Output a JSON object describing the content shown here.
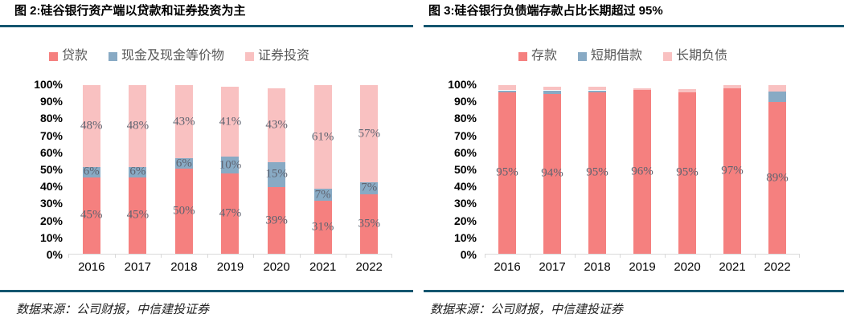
{
  "panels": [
    {
      "title": "图 2:硅谷银行资产端以贷款和证券投资为主",
      "source": "数据来源：公司财报，中信建投证券"
    },
    {
      "title": "图 3:硅谷银行负债端存款占比长期超过 95%",
      "source": "数据来源：公司财报，中信建投证券"
    }
  ],
  "colors": {
    "accent_rule": "#14566f",
    "axis_line": "#d9d9d9",
    "value_label": "#5f6370",
    "legend_text": "#595959",
    "series_red": "#f5807f",
    "series_blue": "#88aac4",
    "series_pink": "#f9c1c1"
  },
  "chart_data": [
    {
      "type": "bar",
      "stacked": true,
      "title": "图 2:硅谷银行资产端以贷款和证券投资为主",
      "categories": [
        "2016",
        "2017",
        "2018",
        "2019",
        "2020",
        "2021",
        "2022"
      ],
      "series": [
        {
          "key": "loans",
          "name": "贷款",
          "color": "#f5807f",
          "values": [
            45,
            45,
            50,
            47,
            39,
            31,
            35
          ],
          "labels": [
            "45%",
            "45%",
            "50%",
            "47%",
            "39%",
            "31%",
            "35%"
          ],
          "show_labels": true
        },
        {
          "key": "cash-and-equivalents",
          "name": "现金及现金等价物",
          "color": "#88aac4",
          "values": [
            6,
            6,
            6,
            10,
            15,
            7,
            7
          ],
          "labels": [
            "6%",
            "6%",
            "6%",
            "10%",
            "15%",
            "7%",
            "7%"
          ],
          "show_labels": true
        },
        {
          "key": "securities-investment",
          "name": "证券投资",
          "color": "#f9c1c1",
          "values": [
            48,
            48,
            43,
            41,
            43,
            61,
            57
          ],
          "labels": [
            "48%",
            "48%",
            "43%",
            "41%",
            "43%",
            "61%",
            "57%"
          ],
          "show_labels": true
        }
      ],
      "ylim": [
        0,
        100
      ],
      "ytick_step": 10,
      "ytick_labels": [
        "0%",
        "10%",
        "20%",
        "30%",
        "40%",
        "50%",
        "60%",
        "70%",
        "80%",
        "90%",
        "100%"
      ],
      "legend_position": "top",
      "grid": false
    },
    {
      "type": "bar",
      "stacked": true,
      "title": "图 3:硅谷银行负债端存款占比长期超过 95%",
      "categories": [
        "2016",
        "2017",
        "2018",
        "2019",
        "2020",
        "2021",
        "2022"
      ],
      "series": [
        {
          "key": "deposits",
          "name": "存款",
          "color": "#f5807f",
          "values": [
            95,
            94,
            95,
            96,
            95,
            97,
            89
          ],
          "labels": [
            "95%",
            "94%",
            "95%",
            "96%",
            "95%",
            "97%",
            "89%"
          ],
          "show_labels": true
        },
        {
          "key": "short-term-borrowings",
          "name": "短期借款",
          "color": "#88aac4",
          "values": [
            1,
            2,
            1,
            0,
            0,
            0,
            6.5
          ],
          "show_labels": false
        },
        {
          "key": "long-term-liabilities",
          "name": "长期负债",
          "color": "#f9c1c1",
          "values": [
            3,
            2,
            2,
            1,
            1.5,
            2,
            3.5
          ],
          "show_labels": false
        }
      ],
      "ylim": [
        0,
        100
      ],
      "ytick_step": 10,
      "ytick_labels": [
        "0%",
        "10%",
        "20%",
        "30%",
        "40%",
        "50%",
        "60%",
        "70%",
        "80%",
        "90%",
        "100%"
      ],
      "legend_position": "top",
      "grid": false
    }
  ]
}
